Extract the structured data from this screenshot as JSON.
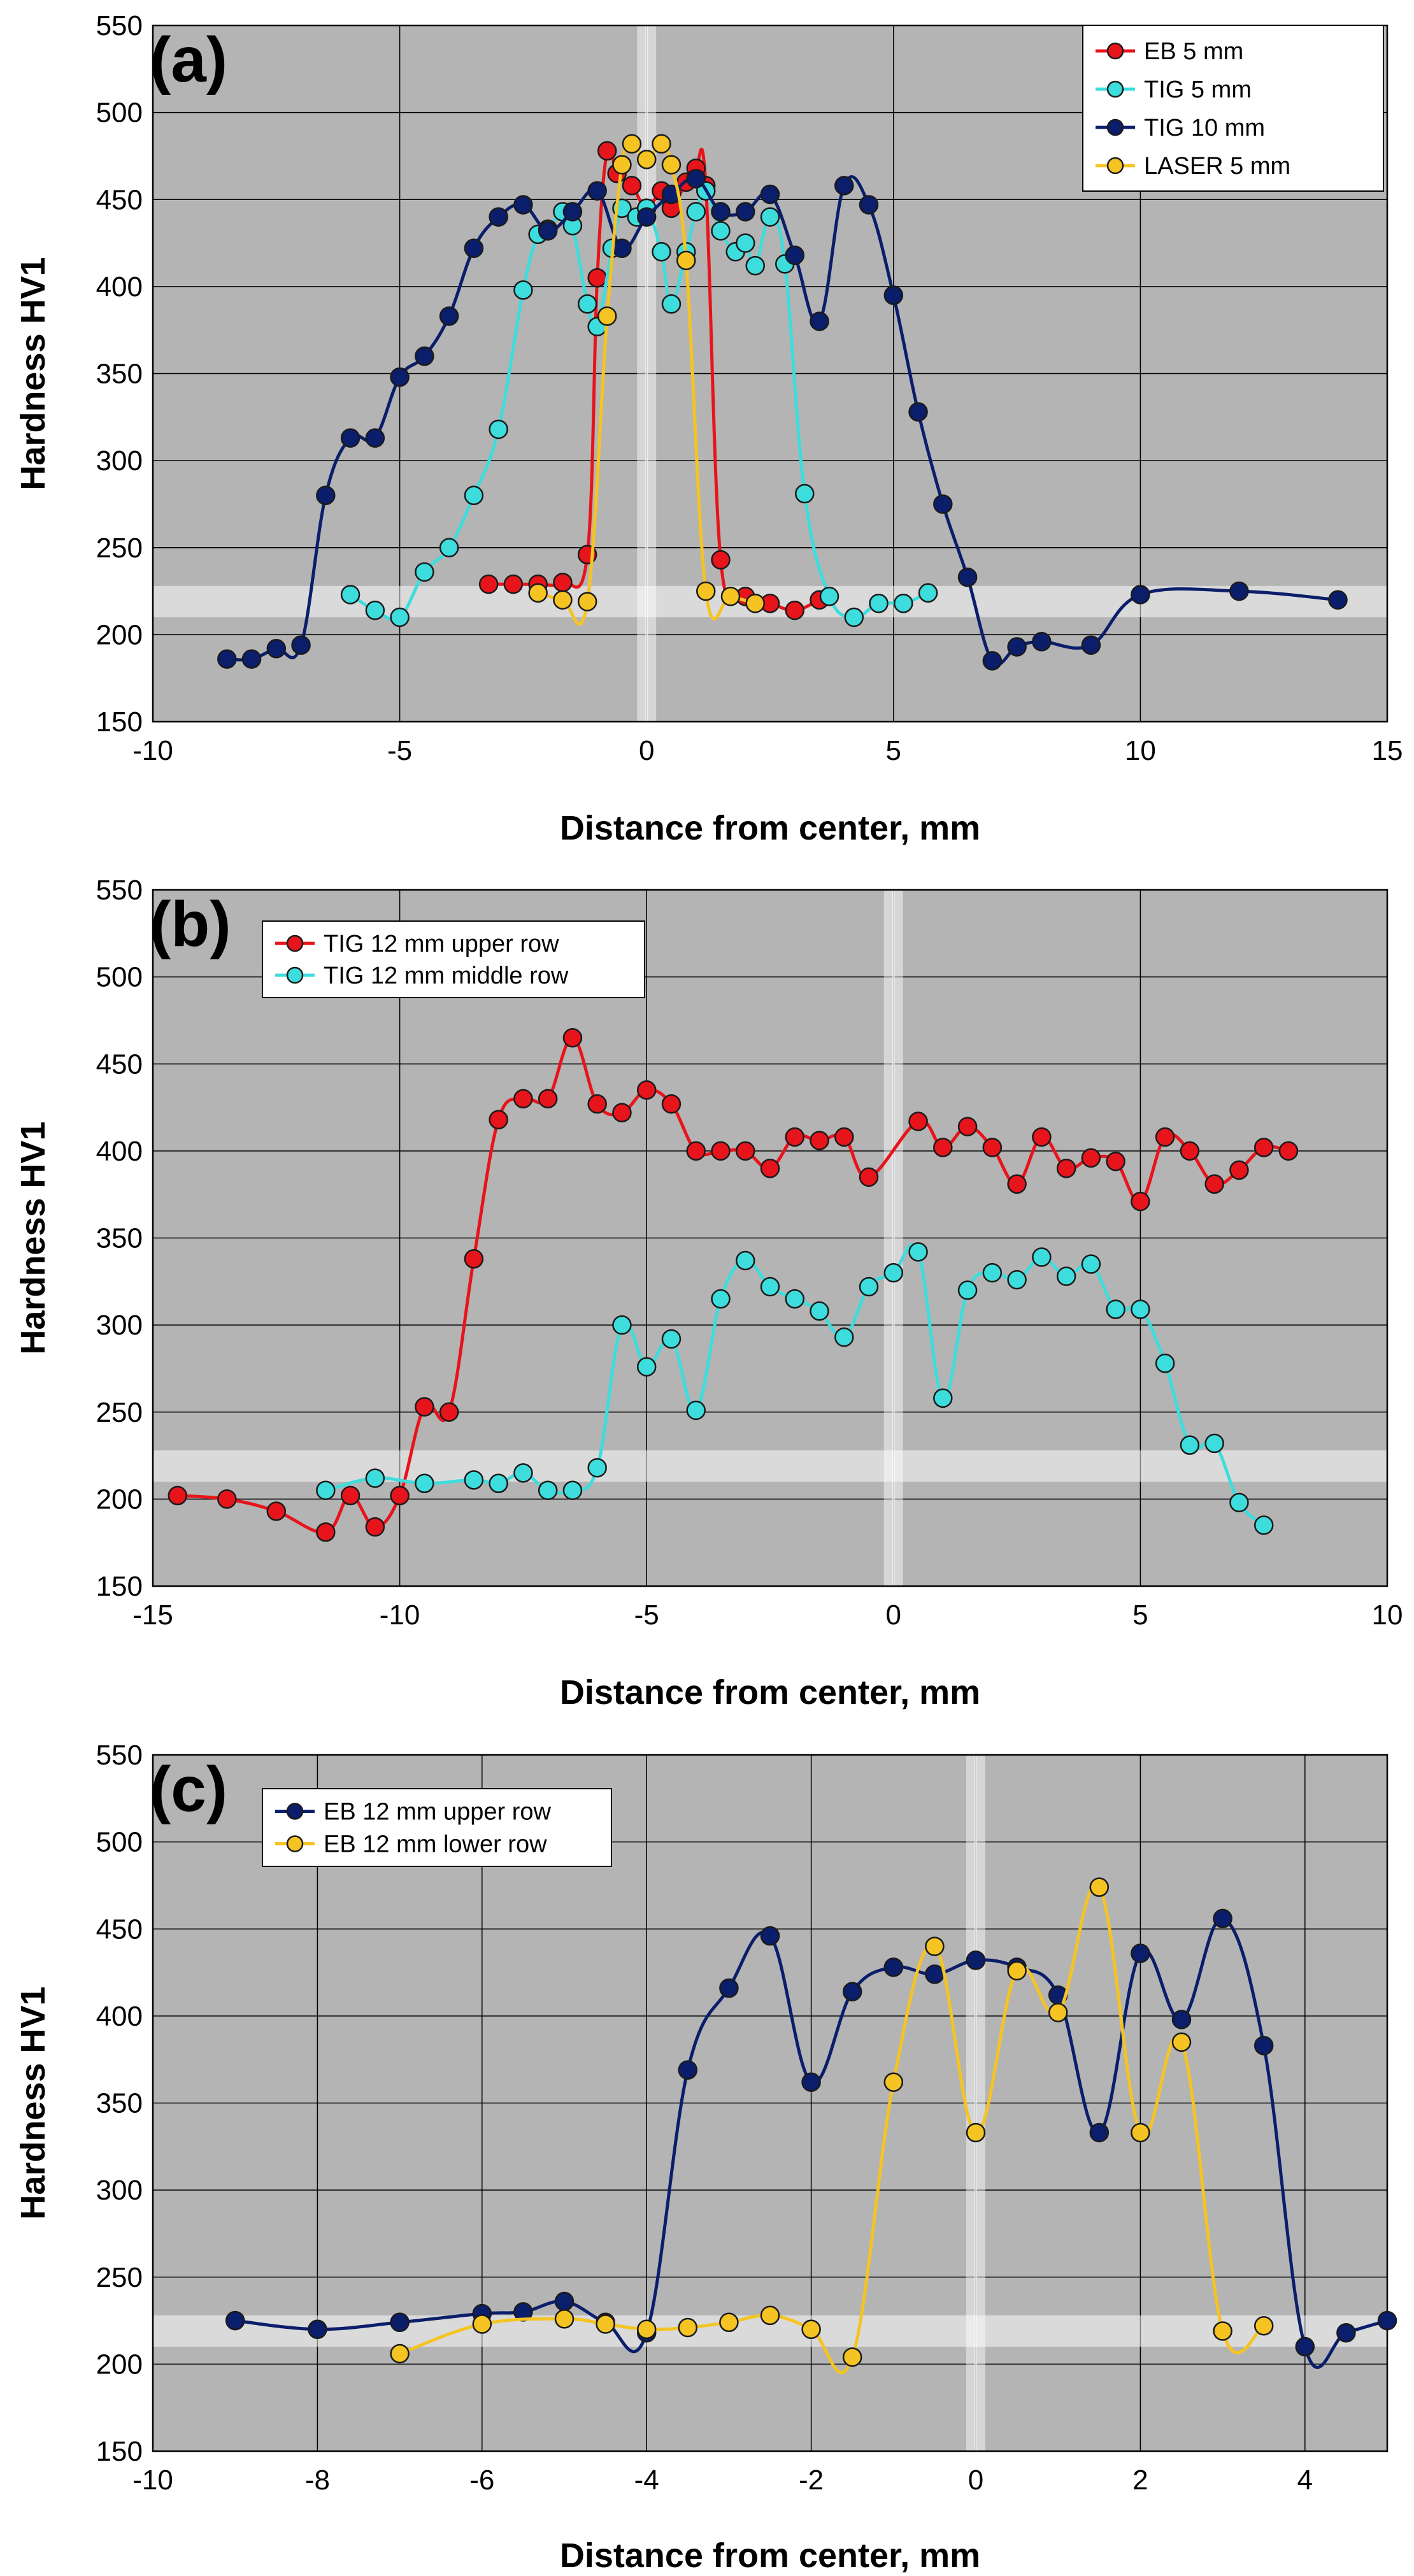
{
  "chart_data": [
    {
      "type": "line",
      "panel": "(a)",
      "xlabel": "Distance from center, mm",
      "ylabel": "Hardness HV1",
      "xlim": [
        -10,
        15
      ],
      "ylim": [
        150,
        550
      ],
      "xticks": [
        -10,
        -5,
        0,
        5,
        10,
        15
      ],
      "yticks": [
        150,
        200,
        250,
        300,
        350,
        400,
        450,
        500,
        550
      ],
      "grid": true,
      "legend_position": "top-right",
      "base_band": [
        210,
        228
      ],
      "series": [
        {
          "name": "EB 5 mm",
          "line_color": "#e8141b",
          "marker_color": "#e8141b",
          "x": [
            -3.2,
            -2.7,
            -2.2,
            -1.7,
            -1.2,
            -1.0,
            -0.8,
            -0.6,
            -0.3,
            0.0,
            0.3,
            0.5,
            0.8,
            1.0,
            1.2,
            1.5,
            2.0,
            2.5,
            3.0,
            3.5
          ],
          "y": [
            229,
            229,
            229,
            230,
            246,
            405,
            478,
            465,
            458,
            445,
            455,
            445,
            460,
            468,
            458,
            243,
            222,
            218,
            214,
            220
          ]
        },
        {
          "name": "TIG 5 mm",
          "line_color": "#3ddddd",
          "marker_color": "#3ddddd",
          "x": [
            -6.0,
            -5.5,
            -5.0,
            -4.5,
            -4.0,
            -3.5,
            -3.0,
            -2.5,
            -2.2,
            -2.0,
            -1.7,
            -1.5,
            -1.2,
            -1.0,
            -0.7,
            -0.5,
            -0.2,
            0.0,
            0.3,
            0.5,
            0.8,
            1.0,
            1.2,
            1.5,
            1.8,
            2.0,
            2.2,
            2.5,
            2.8,
            3.2,
            3.7,
            4.2,
            4.7,
            5.2,
            5.7
          ],
          "y": [
            223,
            214,
            210,
            236,
            250,
            280,
            318,
            398,
            430,
            433,
            443,
            435,
            390,
            377,
            422,
            445,
            440,
            445,
            420,
            390,
            420,
            443,
            455,
            432,
            420,
            425,
            412,
            440,
            413,
            281,
            222,
            210,
            218,
            218,
            224
          ]
        },
        {
          "name": "TIG 10 mm",
          "line_color": "#0b1e6b",
          "marker_color": "#0b1e6b",
          "x": [
            -8.5,
            -8.0,
            -7.5,
            -7.0,
            -6.5,
            -6.0,
            -5.5,
            -5.0,
            -4.5,
            -4.0,
            -3.5,
            -3.0,
            -2.5,
            -2.0,
            -1.5,
            -1.0,
            -0.5,
            0.0,
            0.5,
            1.0,
            1.5,
            2.0,
            2.5,
            3.0,
            3.5,
            4.0,
            4.5,
            5.0,
            5.5,
            6.0,
            6.5,
            7.0,
            7.5,
            8.0,
            9.0,
            10.0,
            12.0,
            14.0
          ],
          "y": [
            186,
            186,
            192,
            194,
            280,
            313,
            313,
            348,
            360,
            383,
            422,
            440,
            447,
            432,
            443,
            455,
            422,
            440,
            453,
            462,
            443,
            443,
            453,
            418,
            380,
            458,
            447,
            395,
            328,
            275,
            233,
            185,
            193,
            196,
            194,
            223,
            225,
            220
          ]
        },
        {
          "name": "LASER 5 mm",
          "line_color": "#f5c422",
          "marker_color": "#f5c422",
          "x": [
            -2.2,
            -1.7,
            -1.2,
            -0.8,
            -0.5,
            -0.3,
            0.0,
            0.3,
            0.5,
            0.8,
            1.2,
            1.7,
            2.2
          ],
          "y": [
            224,
            220,
            219,
            383,
            470,
            482,
            473,
            482,
            470,
            415,
            225,
            222,
            218
          ]
        }
      ]
    },
    {
      "type": "line",
      "panel": "(b)",
      "xlabel": "Distance from center, mm",
      "ylabel": "Hardness HV1",
      "xlim": [
        -15,
        10
      ],
      "ylim": [
        150,
        550
      ],
      "xticks": [
        -15,
        -10,
        -5,
        0,
        5,
        10
      ],
      "yticks": [
        150,
        200,
        250,
        300,
        350,
        400,
        450,
        500,
        550
      ],
      "grid": true,
      "legend_position": "top-left",
      "base_band": [
        210,
        228
      ],
      "series": [
        {
          "name": "TIG 12 mm upper row",
          "line_color": "#e8141b",
          "marker_color": "#e8141b",
          "x": [
            -14.5,
            -13.5,
            -12.5,
            -11.5,
            -11.0,
            -10.5,
            -10.0,
            -9.5,
            -9.0,
            -8.5,
            -8.0,
            -7.5,
            -7.0,
            -6.5,
            -6.0,
            -5.5,
            -5.0,
            -4.5,
            -4.0,
            -3.5,
            -3.0,
            -2.5,
            -2.0,
            -1.5,
            -1.0,
            -0.5,
            0.5,
            1.0,
            1.5,
            2.0,
            2.5,
            3.0,
            3.5,
            4.0,
            4.5,
            5.0,
            5.5,
            6.0,
            6.5,
            7.0,
            7.5,
            8.0
          ],
          "y": [
            202,
            200,
            193,
            181,
            202,
            184,
            202,
            253,
            250,
            338,
            418,
            430,
            430,
            465,
            427,
            422,
            435,
            427,
            400,
            400,
            400,
            390,
            408,
            406,
            408,
            385,
            417,
            402,
            414,
            402,
            381,
            408,
            390,
            396,
            394,
            371,
            408,
            400,
            381,
            389,
            402,
            400
          ]
        },
        {
          "name": "TIG 12 mm middle row",
          "line_color": "#3ddddd",
          "marker_color": "#3ddddd",
          "x": [
            -11.5,
            -10.5,
            -9.5,
            -8.5,
            -8.0,
            -7.5,
            -7.0,
            -6.5,
            -6.0,
            -5.5,
            -5.0,
            -4.5,
            -4.0,
            -3.5,
            -3.0,
            -2.5,
            -2.0,
            -1.5,
            -1.0,
            -0.5,
            0.0,
            0.5,
            1.0,
            1.5,
            2.0,
            2.5,
            3.0,
            3.5,
            4.0,
            4.5,
            5.0,
            5.5,
            6.0,
            6.5,
            7.0,
            7.5
          ],
          "y": [
            205,
            212,
            209,
            211,
            209,
            215,
            205,
            205,
            218,
            300,
            276,
            292,
            251,
            315,
            337,
            322,
            315,
            308,
            293,
            322,
            330,
            342,
            258,
            320,
            330,
            326,
            339,
            328,
            335,
            309,
            309,
            278,
            231,
            232,
            198,
            185
          ]
        }
      ]
    },
    {
      "type": "line",
      "panel": "(c)",
      "xlabel": "Distance from center, mm",
      "ylabel": "Hardness HV1",
      "xlim": [
        -10,
        5
      ],
      "ylim": [
        150,
        550
      ],
      "xticks": [
        -10,
        -8,
        -6,
        -4,
        -2,
        0,
        2,
        4
      ],
      "yticks": [
        150,
        200,
        250,
        300,
        350,
        400,
        450,
        500,
        550
      ],
      "grid": true,
      "legend_position": "top-left",
      "base_band": [
        210,
        228
      ],
      "series": [
        {
          "name": "EB 12 mm upper row",
          "line_color": "#0b1e6b",
          "marker_color": "#0b1e6b",
          "x": [
            -9.0,
            -8.0,
            -7.0,
            -6.0,
            -5.5,
            -5.0,
            -4.5,
            -4.0,
            -3.5,
            -3.0,
            -2.5,
            -2.0,
            -1.5,
            -1.0,
            -0.5,
            0.0,
            0.5,
            1.0,
            1.5,
            2.0,
            2.5,
            3.0,
            3.5,
            4.0,
            4.5,
            5.0
          ],
          "y": [
            225,
            220,
            224,
            229,
            230,
            236,
            224,
            218,
            369,
            416,
            446,
            362,
            414,
            428,
            424,
            432,
            428,
            412,
            333,
            436,
            398,
            456,
            383,
            210,
            218,
            225
          ]
        },
        {
          "name": "EB 12 mm lower row",
          "line_color": "#f5c422",
          "marker_color": "#f5c422",
          "x": [
            -7.0,
            -6.0,
            -5.0,
            -4.5,
            -4.0,
            -3.5,
            -3.0,
            -2.5,
            -2.0,
            -1.5,
            -1.0,
            -0.5,
            0.0,
            0.5,
            1.0,
            1.5,
            2.0,
            2.5,
            3.0,
            3.5
          ],
          "y": [
            206,
            223,
            226,
            223,
            220,
            221,
            224,
            228,
            220,
            204,
            362,
            440,
            333,
            426,
            402,
            474,
            333,
            385,
            219,
            222
          ]
        }
      ]
    }
  ]
}
